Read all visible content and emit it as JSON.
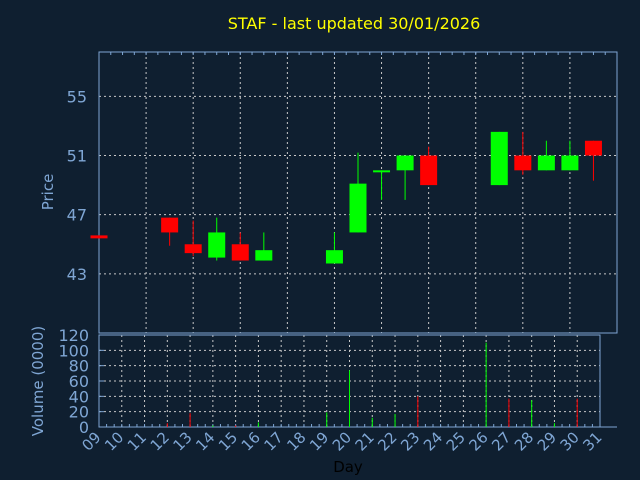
{
  "chart_data": [
    {
      "type": "candlestick",
      "title": "STAF - last updated 30/01/2026",
      "ylabel": "Price",
      "ylim": [
        39,
        58
      ],
      "yticks": [
        43,
        47,
        51,
        55
      ],
      "grid": true,
      "colors": {
        "up": "#00ff00",
        "down": "#ff0000",
        "background": "#0f1f30",
        "axis": "#7fa6d4",
        "title": "#ffff00"
      },
      "x_days": [
        "09",
        "10",
        "11",
        "12",
        "13",
        "14",
        "15",
        "16",
        "17",
        "18",
        "19",
        "20",
        "21",
        "22",
        "23",
        "24",
        "25",
        "26",
        "27",
        "28",
        "29",
        "30",
        "31"
      ],
      "candles": [
        {
          "day": "09",
          "open": 45.6,
          "high": 45.6,
          "low": 45.4,
          "close": 45.4
        },
        {
          "day": "12",
          "open": 46.8,
          "high": 46.8,
          "low": 44.9,
          "close": 45.8
        },
        {
          "day": "13",
          "open": 45.0,
          "high": 46.6,
          "low": 44.2,
          "close": 44.4
        },
        {
          "day": "14",
          "open": 44.1,
          "high": 46.8,
          "low": 43.9,
          "close": 45.8
        },
        {
          "day": "15",
          "open": 45.0,
          "high": 45.8,
          "low": 43.9,
          "close": 43.9
        },
        {
          "day": "16",
          "open": 43.9,
          "high": 45.8,
          "low": 43.9,
          "close": 44.6
        },
        {
          "day": "19",
          "open": 43.7,
          "high": 45.8,
          "low": 43.7,
          "close": 44.6
        },
        {
          "day": "20",
          "open": 45.8,
          "high": 51.2,
          "low": 45.8,
          "close": 49.1
        },
        {
          "day": "21",
          "open": 49.9,
          "high": 50.0,
          "low": 48.0,
          "close": 50.0
        },
        {
          "day": "22",
          "open": 50.0,
          "high": 51.0,
          "low": 48.0,
          "close": 51.0
        },
        {
          "day": "23",
          "open": 51.0,
          "high": 51.6,
          "low": 49.0,
          "close": 49.0
        },
        {
          "day": "26",
          "open": 49.0,
          "high": 52.6,
          "low": 49.0,
          "close": 52.6
        },
        {
          "day": "27",
          "open": 51.0,
          "high": 52.6,
          "low": 49.7,
          "close": 50.0
        },
        {
          "day": "28",
          "open": 50.0,
          "high": 52.0,
          "low": 50.0,
          "close": 51.0
        },
        {
          "day": "29",
          "open": 50.0,
          "high": 52.0,
          "low": 50.0,
          "close": 51.0
        },
        {
          "day": "30",
          "open": 52.0,
          "high": 52.0,
          "low": 49.3,
          "close": 51.0
        }
      ]
    },
    {
      "type": "bar",
      "xlabel": "Day",
      "ylabel": "Volume (0000)",
      "ylim": [
        0,
        120
      ],
      "yticks": [
        0,
        20,
        40,
        60,
        80,
        100,
        120
      ],
      "grid": true,
      "x_days": [
        "09",
        "10",
        "11",
        "12",
        "13",
        "14",
        "15",
        "16",
        "17",
        "18",
        "19",
        "20",
        "21",
        "22",
        "23",
        "24",
        "25",
        "26",
        "27",
        "28",
        "29",
        "30",
        "31"
      ],
      "bars": [
        {
          "day": "12",
          "value": 5,
          "direction": "down"
        },
        {
          "day": "13",
          "value": 18,
          "direction": "down"
        },
        {
          "day": "14",
          "value": 2,
          "direction": "up"
        },
        {
          "day": "15",
          "value": 2,
          "direction": "down"
        },
        {
          "day": "16",
          "value": 6,
          "direction": "up"
        },
        {
          "day": "19",
          "value": 19,
          "direction": "up"
        },
        {
          "day": "20",
          "value": 74,
          "direction": "up"
        },
        {
          "day": "21",
          "value": 12,
          "direction": "up"
        },
        {
          "day": "22",
          "value": 17,
          "direction": "up"
        },
        {
          "day": "23",
          "value": 40,
          "direction": "down"
        },
        {
          "day": "26",
          "value": 110,
          "direction": "up"
        },
        {
          "day": "27",
          "value": 37,
          "direction": "down"
        },
        {
          "day": "28",
          "value": 35,
          "direction": "up"
        },
        {
          "day": "29",
          "value": 5,
          "direction": "up"
        },
        {
          "day": "30",
          "value": 37,
          "direction": "down"
        }
      ]
    }
  ]
}
